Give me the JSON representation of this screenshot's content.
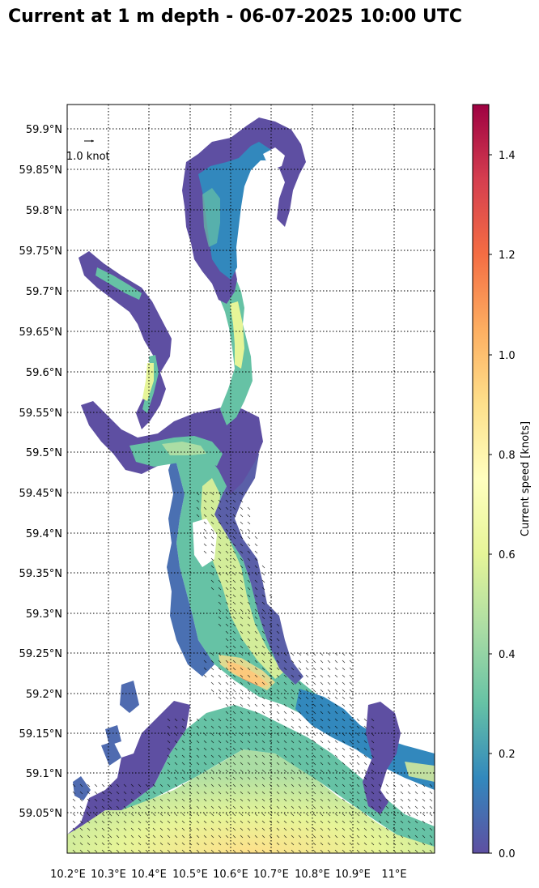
{
  "title": "Current at 1 m depth - 06-07-2025 10:00 UTC",
  "map": {
    "scale_arrow_label": "1.0 knot",
    "lat_ticks": [
      "59.9°N",
      "59.85°N",
      "59.8°N",
      "59.75°N",
      "59.7°N",
      "59.65°N",
      "59.6°N",
      "59.55°N",
      "59.5°N",
      "59.45°N",
      "59.4°N",
      "59.35°N",
      "59.3°N",
      "59.25°N",
      "59.2°N",
      "59.15°N",
      "59.1°N",
      "59.05°N"
    ],
    "lon_ticks": [
      "10.2°E",
      "10.3°E",
      "10.4°E",
      "10.5°E",
      "10.6°E",
      "10.7°E",
      "10.8°E",
      "10.9°E",
      "11°E"
    ],
    "gridlines": "dotted"
  },
  "colorbar": {
    "label": "Current speed [knots]",
    "ticks": [
      "0.0",
      "0.2",
      "0.4",
      "0.6",
      "0.8",
      "1.0",
      "1.2",
      "1.4"
    ],
    "range": [
      0,
      1.5
    ],
    "colormap": "Spectral_r",
    "colors": [
      "#5e4fa2",
      "#3288bd",
      "#66c2a5",
      "#abdda4",
      "#e6f598",
      "#ffffbf",
      "#fee08b",
      "#fdae61",
      "#f46d43",
      "#d53e4f",
      "#9e0142"
    ]
  }
}
